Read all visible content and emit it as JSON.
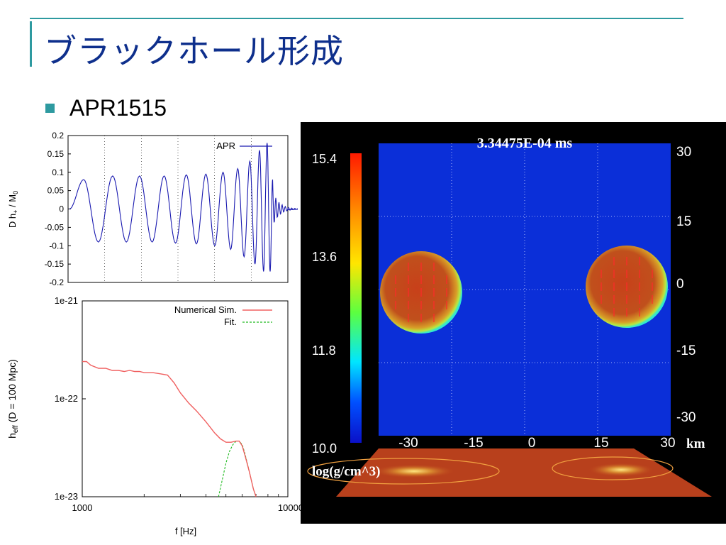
{
  "slide": {
    "title": "ブラックホール形成",
    "bullet": "APR1515"
  },
  "colors": {
    "title": "#0e2f8c",
    "accent": "#2e9aa0",
    "waveform": "#1a1ab0",
    "numerical": "#f06060",
    "fit": "#22bb22"
  },
  "chart_data": [
    {
      "type": "line",
      "ylabel_main": "D h",
      "ylabel_sub": "+",
      "ylabel_tail": " / M",
      "ylabel_sub2": "0",
      "ylim": [
        -0.2,
        0.2
      ],
      "yticks": [
        "0.2",
        "0.15",
        "0.1",
        "0.05",
        "0",
        "-0.05",
        "-0.1",
        "-0.15",
        "-0.2"
      ],
      "series": [
        {
          "name": "APR"
        }
      ],
      "peaks_x": [
        0.0283,
        0.0574,
        0.0856,
        0.1128,
        0.139,
        0.164,
        0.1878,
        0.2104,
        0.2318,
        0.2518,
        0.2706,
        0.2882,
        0.3046,
        0.3198,
        0.3338,
        0.3464,
        0.3578,
        0.368,
        0.377,
        0.385,
        0.392,
        0.398,
        0.403
      ],
      "peaks_y": [
        0.08,
        -0.09,
        0.09,
        -0.09,
        0.09,
        -0.09,
        0.09,
        -0.093,
        0.093,
        -0.095,
        0.095,
        -0.1,
        0.1,
        -0.11,
        0.11,
        -0.13,
        0.13,
        -0.15,
        0.16,
        -0.17,
        0.18,
        -0.17,
        0.08
      ]
    },
    {
      "type": "line",
      "xlabel": "f [Hz]",
      "ylabel_main": "h",
      "ylabel_sub": "eff",
      "ylabel_tail": " (D = 100 Mpc)",
      "x_scale": "log",
      "y_scale": "log",
      "xlim": [
        1000,
        10000
      ],
      "ylim": [
        1e-23,
        1e-21
      ],
      "xticks": [
        "1000",
        "10000"
      ],
      "yticks": [
        "1e-21",
        "1e-22",
        "1e-23"
      ],
      "series": [
        {
          "name": "Numerical Sim.",
          "x": [
            1000,
            1050,
            1100,
            1200,
            1300,
            1400,
            1500,
            1600,
            1700,
            1800,
            1900,
            2000,
            2200,
            2400,
            2600,
            2800,
            3000,
            3300,
            3600,
            4000,
            4400,
            4700,
            5000,
            5300,
            5600,
            5800,
            6000,
            6200,
            6500,
            6800,
            7000
          ],
          "y": [
            2.4e-22,
            2.4e-22,
            2.2e-22,
            2.05e-22,
            2.05e-22,
            1.95e-22,
            1.95e-22,
            1.9e-22,
            1.95e-22,
            1.9e-22,
            1.9e-22,
            1.85e-22,
            1.85e-22,
            1.8e-22,
            1.75e-22,
            1.45e-22,
            1.15e-22,
            9e-23,
            7.5e-23,
            5.8e-23,
            4.5e-23,
            3.9e-23,
            3.6e-23,
            3.6e-23,
            3.7e-23,
            3.7e-23,
            3.3e-23,
            2.6e-23,
            1.8e-23,
            1.2e-23,
            1e-23
          ]
        },
        {
          "name": "Fit.",
          "x": [
            4600,
            4800,
            5000,
            5200,
            5400,
            5600,
            5800,
            6000,
            6200,
            6500,
            6800,
            7000
          ],
          "y": [
            1e-23,
            1.5e-23,
            2.2e-23,
            2.9e-23,
            3.4e-23,
            3.7e-23,
            3.7e-23,
            3.4e-23,
            2.7e-23,
            1.8e-23,
            1.2e-23,
            1e-23
          ]
        }
      ]
    }
  ],
  "simulation": {
    "time_label": "3.34475E-04 ms",
    "colorbar_ticks": [
      "15.4",
      "13.6",
      "11.8",
      "10.0"
    ],
    "colorbar_label": "log(g/cm^3)",
    "x_ticks": [
      "-30",
      "-15",
      "0",
      "15",
      "30"
    ],
    "y_ticks": [
      "30",
      "15",
      "0",
      "-15",
      "-30"
    ],
    "unit": "km"
  }
}
